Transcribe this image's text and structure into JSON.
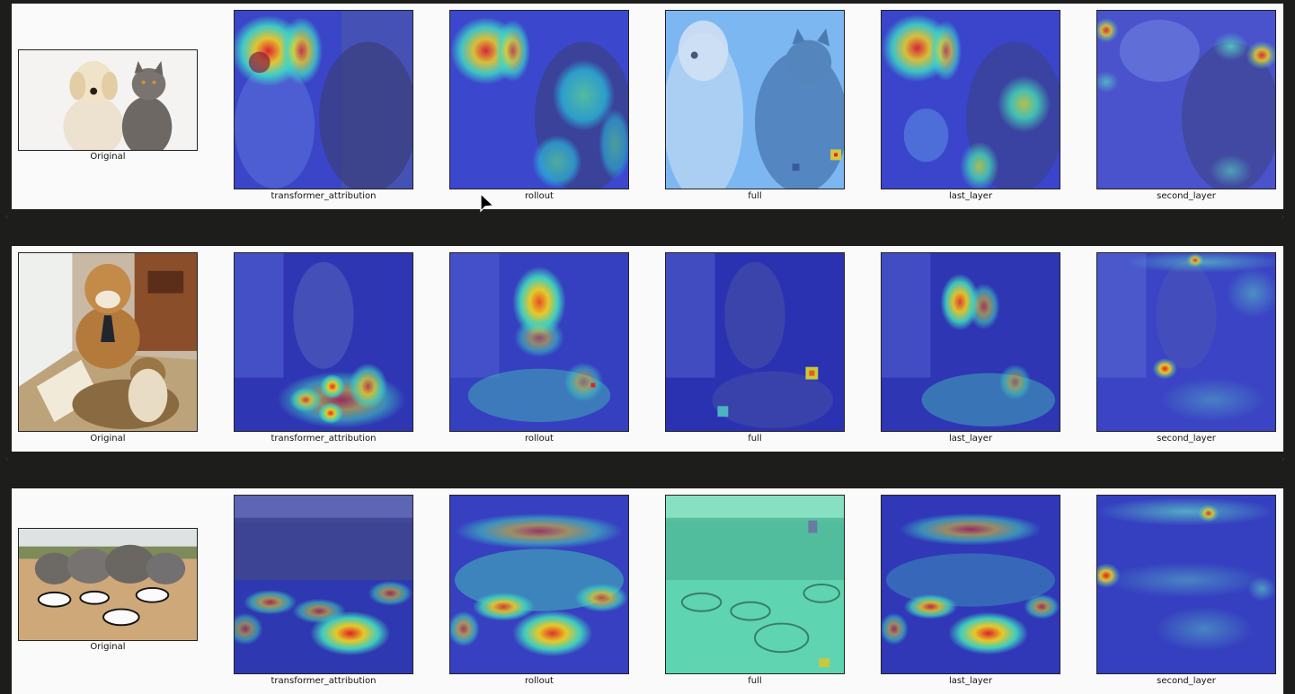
{
  "figures": [
    {
      "id": "cat-dog",
      "original_caption": "Original",
      "heatmap_captions": [
        "transformer_attribution",
        "rollout",
        "full",
        "last_layer",
        "second_layer"
      ]
    },
    {
      "id": "bulldog-cat",
      "original_caption": "Original",
      "heatmap_captions": [
        "transformer_attribution",
        "rollout",
        "full",
        "last_layer",
        "second_layer"
      ]
    },
    {
      "id": "elephants-zebras",
      "original_caption": "Original",
      "heatmap_captions": [
        "transformer_attribution",
        "rollout",
        "full",
        "last_layer",
        "second_layer"
      ]
    }
  ],
  "colors": {
    "viewer_background": "#1d1d1c",
    "figure_background": "#fafafa",
    "jet_low": "#2a3ed8",
    "jet_high": "#e8202a"
  },
  "icons": {
    "cursor": "mouse-pointer-icon",
    "scroll_left": "chevron-left-icon",
    "scroll_right": "chevron-right-icon"
  }
}
